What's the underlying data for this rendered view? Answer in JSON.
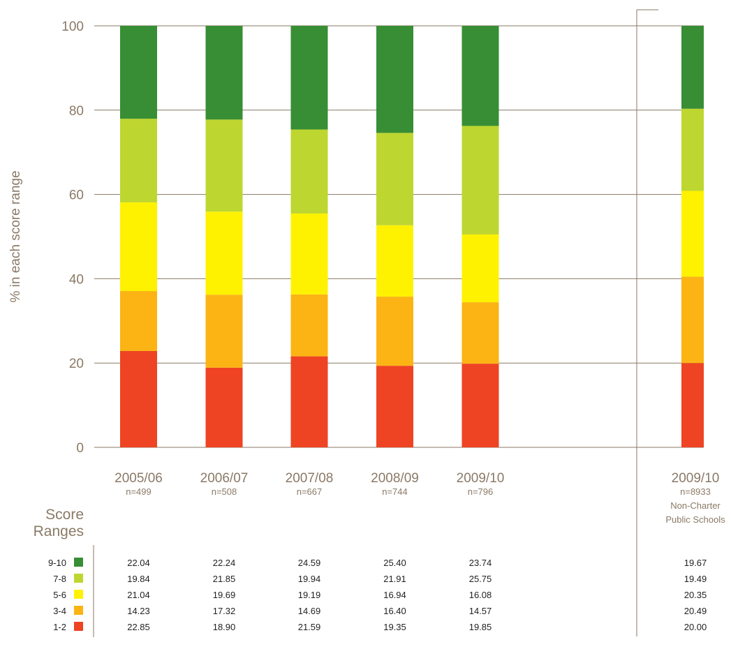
{
  "chart_data": {
    "type": "bar",
    "stacked": true,
    "ylabel": "% in each score range",
    "ylim": [
      0,
      100
    ],
    "yticks": [
      0,
      20,
      40,
      60,
      80,
      100
    ],
    "grid": true,
    "legend_title": [
      "Score",
      "Ranges"
    ],
    "categories": [
      {
        "label": "2005/06",
        "n": "n=499",
        "extra": []
      },
      {
        "label": "2006/07",
        "n": "n=508",
        "extra": []
      },
      {
        "label": "2007/08",
        "n": "n=667",
        "extra": []
      },
      {
        "label": "2008/09",
        "n": "n=744",
        "extra": []
      },
      {
        "label": "2009/10",
        "n": "n=796",
        "extra": []
      },
      {
        "label": "2009/10",
        "n": "n=8933",
        "extra": [
          "Non-Charter",
          "Public Schools"
        ]
      }
    ],
    "series": [
      {
        "name": "1-2",
        "color": "#ee4423",
        "values": [
          22.85,
          18.9,
          21.59,
          19.35,
          19.85,
          20.0
        ],
        "labels": [
          "22.85",
          "18.90",
          "21.59",
          "19.35",
          "19.85",
          "20.00"
        ]
      },
      {
        "name": "3-4",
        "color": "#fbb414",
        "values": [
          14.23,
          17.32,
          14.69,
          16.4,
          14.57,
          20.49
        ],
        "labels": [
          "14.23",
          "17.32",
          "14.69",
          "16.40",
          "14.57",
          "20.49"
        ]
      },
      {
        "name": "5-6",
        "color": "#fff200",
        "values": [
          21.04,
          19.69,
          19.19,
          16.94,
          16.08,
          20.35
        ],
        "labels": [
          "21.04",
          "19.69",
          "19.19",
          "16.94",
          "16.08",
          "20.35"
        ]
      },
      {
        "name": "7-8",
        "color": "#bed630",
        "values": [
          19.84,
          21.85,
          19.94,
          21.91,
          25.75,
          19.49
        ],
        "labels": [
          "19.84",
          "21.85",
          "19.94",
          "21.91",
          "25.75",
          "19.49"
        ]
      },
      {
        "name": "9-10",
        "color": "#388e35",
        "values": [
          22.04,
          22.24,
          24.59,
          25.4,
          23.74,
          19.67
        ],
        "labels": [
          "22.04",
          "22.24",
          "24.59",
          "25.40",
          "23.74",
          "19.67"
        ]
      }
    ]
  }
}
